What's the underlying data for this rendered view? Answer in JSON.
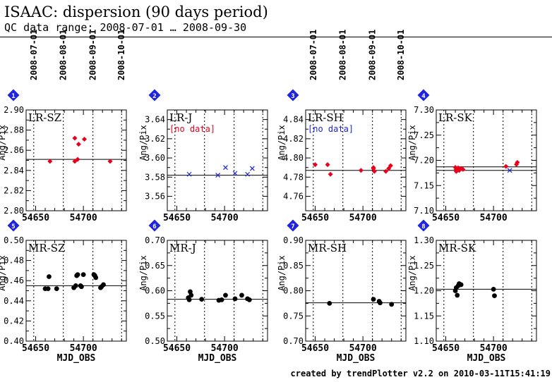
{
  "header": {
    "title": "ISAAC: dispersion (90 days period)",
    "subtitle": "QC data range: 2008-07-01 … 2008-09-30"
  },
  "footer": "created by trendPlotter v2.2 on 2010-03-11T15:41:19",
  "colors": {
    "red": "#e8001c",
    "blue": "#1d24d8",
    "black": "#000000",
    "marker_bg": "#1f24e0"
  },
  "date_axis": {
    "labels": [
      "2008-07-01",
      "2008-08-01",
      "2008-09-01",
      "2008-10-01"
    ],
    "mjd": [
      54648,
      54679,
      54710,
      54740
    ]
  },
  "chart_data": [
    {
      "type": "scatter",
      "marker": "1",
      "label": "LR-SZ",
      "note": "",
      "xlabel": "",
      "ylabel": "Ang/Pix",
      "xlim": [
        54640,
        54745
      ],
      "ylim": [
        2.8,
        2.9
      ],
      "x_ticks": [
        54650,
        54700
      ],
      "y_ticks": [
        2.8,
        2.82,
        2.84,
        2.86,
        2.88,
        2.9
      ],
      "ref_lines": [
        2.851
      ],
      "series": [
        {
          "symbol": "diamond",
          "color": "#e8001c",
          "x": [
            54665,
            54691,
            54691,
            54694,
            54695,
            54701,
            54728
          ],
          "y": [
            2.849,
            2.872,
            2.849,
            2.851,
            2.866,
            2.871,
            2.849
          ]
        }
      ],
      "date_labels": true
    },
    {
      "type": "scatter",
      "marker": "2",
      "label": "LR-J",
      "note": "[no data]",
      "note_color": "#e8001c",
      "xlabel": "",
      "ylabel": "Ang/Pix",
      "xlim": [
        54640,
        54745
      ],
      "ylim": [
        3.545,
        3.65
      ],
      "x_ticks": [
        54650,
        54700
      ],
      "y_ticks": [
        3.56,
        3.58,
        3.6,
        3.62,
        3.64
      ],
      "ref_lines": [
        3.582
      ],
      "series": [
        {
          "symbol": "cross",
          "color": "#1d24d8",
          "x": [
            54663,
            54693,
            54701,
            54711,
            54724,
            54729
          ],
          "y": [
            3.583,
            3.582,
            3.59,
            3.584,
            3.583,
            3.589
          ]
        }
      ],
      "date_labels": false
    },
    {
      "type": "scatter",
      "marker": "3",
      "label": "LR-SH",
      "note": "[no data]",
      "note_color": "#1d24d8",
      "xlabel": "",
      "ylabel": "Ang/Pix",
      "xlim": [
        54640,
        54745
      ],
      "ylim": [
        4.745,
        4.85
      ],
      "x_ticks": [
        54650,
        54700
      ],
      "y_ticks": [
        4.76,
        4.78,
        4.8,
        4.82,
        4.84
      ],
      "ref_lines": [
        4.787
      ],
      "series": [
        {
          "symbol": "diamond",
          "color": "#e8001c",
          "x": [
            54650,
            54663,
            54666,
            54698,
            54711,
            54711,
            54712,
            54724,
            54727,
            54729
          ],
          "y": [
            4.793,
            4.793,
            4.783,
            4.787,
            4.789,
            4.79,
            4.786,
            4.786,
            4.789,
            4.792
          ]
        }
      ],
      "date_labels": true
    },
    {
      "type": "scatter",
      "marker": "4",
      "label": "LR-SK",
      "note": "",
      "xlabel": "",
      "ylabel": "Ang/Pix",
      "xlim": [
        54640,
        54745
      ],
      "ylim": [
        7.1,
        7.3
      ],
      "x_ticks": [
        54650,
        54700
      ],
      "y_ticks": [
        7.1,
        7.15,
        7.2,
        7.25,
        7.3
      ],
      "ref_lines": [
        7.18,
        7.187
      ],
      "series": [
        {
          "symbol": "diamond",
          "color": "#e8001c",
          "x": [
            54660,
            54661,
            54661,
            54663,
            54664,
            54665,
            54666,
            54668,
            54713,
            54724,
            54725
          ],
          "y": [
            7.186,
            7.182,
            7.178,
            7.185,
            7.18,
            7.182,
            7.184,
            7.182,
            7.188,
            7.192,
            7.196
          ]
        },
        {
          "symbol": "cross",
          "color": "#1d24d8",
          "x": [
            54717
          ],
          "y": [
            7.18
          ]
        }
      ],
      "date_labels": false
    },
    {
      "type": "scatter",
      "marker": "5",
      "label": "MR-SZ",
      "note": "",
      "xlabel": "MJD_OBS",
      "ylabel": "Ang/Pix",
      "xlim": [
        54640,
        54745
      ],
      "ylim": [
        0.4,
        0.5
      ],
      "x_ticks": [
        54650,
        54700
      ],
      "y_ticks": [
        0.4,
        0.42,
        0.44,
        0.46,
        0.48,
        0.5
      ],
      "ref_lines": [
        0.455
      ],
      "series": [
        {
          "symbol": "dot",
          "color": "#000000",
          "x": [
            54660,
            54663,
            54664,
            54672,
            54690,
            54692,
            54693,
            54694,
            54697,
            54698,
            54700,
            54711,
            54712,
            54713,
            54718,
            54719,
            54721
          ],
          "y": [
            0.452,
            0.452,
            0.464,
            0.452,
            0.453,
            0.455,
            0.465,
            0.466,
            0.455,
            0.454,
            0.466,
            0.466,
            0.465,
            0.463,
            0.453,
            0.454,
            0.456
          ]
        }
      ],
      "date_labels": false
    },
    {
      "type": "scatter",
      "marker": "6",
      "label": "MR-J",
      "note": "",
      "xlabel": "MJD_OBS",
      "ylabel": "Ang/Pix",
      "xlim": [
        54640,
        54745
      ],
      "ylim": [
        0.5,
        0.7
      ],
      "x_ticks": [
        54650,
        54700
      ],
      "y_ticks": [
        0.5,
        0.55,
        0.6,
        0.65,
        0.7
      ],
      "ref_lines": [
        0.583
      ],
      "series": [
        {
          "symbol": "dot",
          "color": "#000000",
          "x": [
            54662,
            54663,
            54664,
            54665,
            54676,
            54694,
            54697,
            54701,
            54711,
            54718,
            54724,
            54726
          ],
          "y": [
            0.586,
            0.582,
            0.598,
            0.591,
            0.583,
            0.581,
            0.582,
            0.591,
            0.584,
            0.591,
            0.584,
            0.582
          ]
        }
      ],
      "date_labels": false
    },
    {
      "type": "scatter",
      "marker": "7",
      "label": "MR-SH",
      "note": "",
      "xlabel": "MJD_OBS",
      "ylabel": "Ang/Pix",
      "xlim": [
        54640,
        54745
      ],
      "ylim": [
        0.7,
        0.9
      ],
      "x_ticks": [
        54650,
        54700
      ],
      "y_ticks": [
        0.7,
        0.75,
        0.8,
        0.85,
        0.9
      ],
      "ref_lines": [
        0.776
      ],
      "series": [
        {
          "symbol": "dot",
          "color": "#000000",
          "x": [
            54665,
            54711,
            54717,
            54718,
            54730
          ],
          "y": [
            0.775,
            0.783,
            0.779,
            0.776,
            0.773
          ]
        }
      ],
      "date_labels": false
    },
    {
      "type": "scatter",
      "marker": "8",
      "label": "MR-SK",
      "note": "",
      "xlabel": "MJD_OBS",
      "ylabel": "Ang/Pix",
      "xlim": [
        54640,
        54745
      ],
      "ylim": [
        1.1,
        1.3
      ],
      "x_ticks": [
        54650,
        54700
      ],
      "y_ticks": [
        1.1,
        1.15,
        1.2,
        1.25,
        1.3
      ],
      "ref_lines": [
        1.203
      ],
      "series": [
        {
          "symbol": "dot",
          "color": "#000000",
          "x": [
            54660,
            54661,
            54662,
            54663,
            54664,
            54666,
            54700,
            54701
          ],
          "y": [
            1.2,
            1.206,
            1.191,
            1.21,
            1.214,
            1.212,
            1.203,
            1.19
          ]
        }
      ],
      "date_labels": false
    }
  ]
}
